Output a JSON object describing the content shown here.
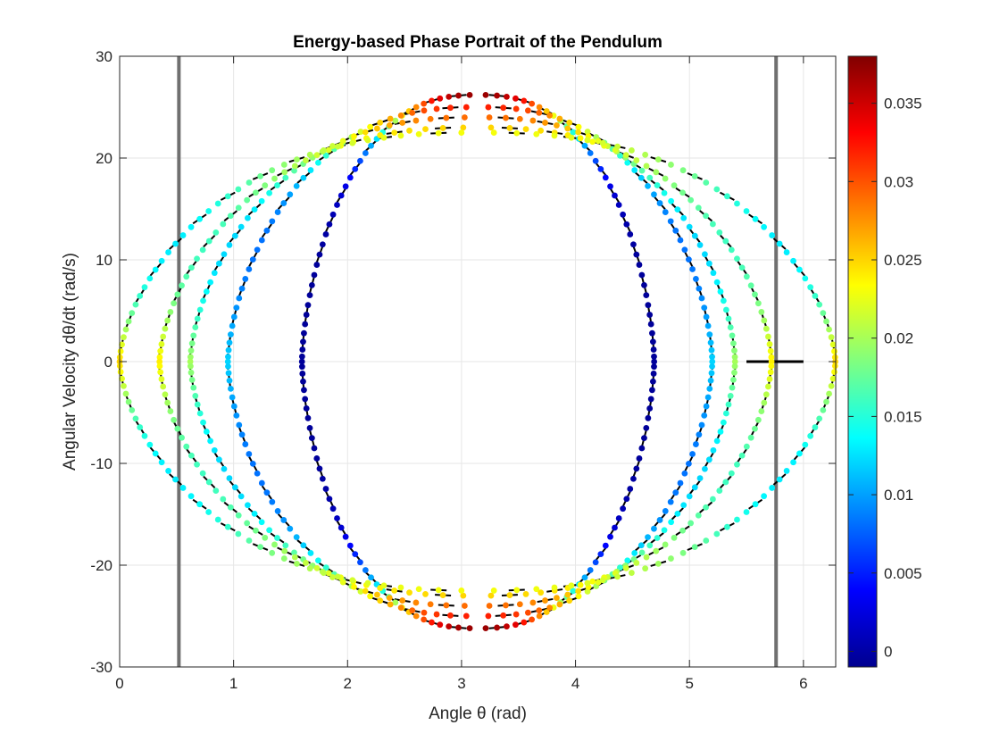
{
  "chart_data": {
    "type": "scatter",
    "title": "Energy-based Phase Portrait of the Pendulum",
    "xlabel": "Angle θ (rad)",
    "ylabel": "Angular Velocity dθ/dt (rad/s)",
    "xlim": [
      0,
      6.2832
    ],
    "ylim": [
      -30,
      30
    ],
    "xticks": [
      "0",
      "1",
      "2",
      "3",
      "4",
      "5",
      "6"
    ],
    "yticks": [
      "-30",
      "-20",
      "-10",
      "0",
      "10",
      "20",
      "30"
    ],
    "grid": true,
    "colormap": "jet",
    "colorbar": {
      "clim": [
        -0.001,
        0.038
      ],
      "ticks": [
        "0",
        "0.005",
        "0.01",
        "0.015",
        "0.02",
        "0.025",
        "0.03",
        "0.035"
      ]
    },
    "vertical_lines": [
      0.52,
      5.76
    ],
    "series": [
      {
        "theta_left": 1.6,
        "theta_right": 4.69,
        "peak": 26.2,
        "c_peak": 0.037,
        "c_mid": 0.0,
        "c_side": 0.0
      },
      {
        "theta_left": 0.95,
        "theta_right": 5.2,
        "peak": 25.0,
        "c_peak": 0.032,
        "c_mid": 0.008,
        "c_side": 0.012
      },
      {
        "theta_left": 0.62,
        "theta_right": 5.4,
        "peak": 24.0,
        "c_peak": 0.029,
        "c_mid": 0.012,
        "c_side": 0.02
      },
      {
        "theta_left": 0.35,
        "theta_right": 5.72,
        "peak": 23.0,
        "c_peak": 0.025,
        "c_mid": 0.016,
        "c_side": 0.024
      },
      {
        "theta_left": 0.0,
        "theta_right": 6.28,
        "peak": 22.5,
        "c_peak": 0.023,
        "c_mid": 0.013,
        "c_side": 0.025
      }
    ],
    "quiver_color": "#000000",
    "vline_color": "#707070"
  }
}
